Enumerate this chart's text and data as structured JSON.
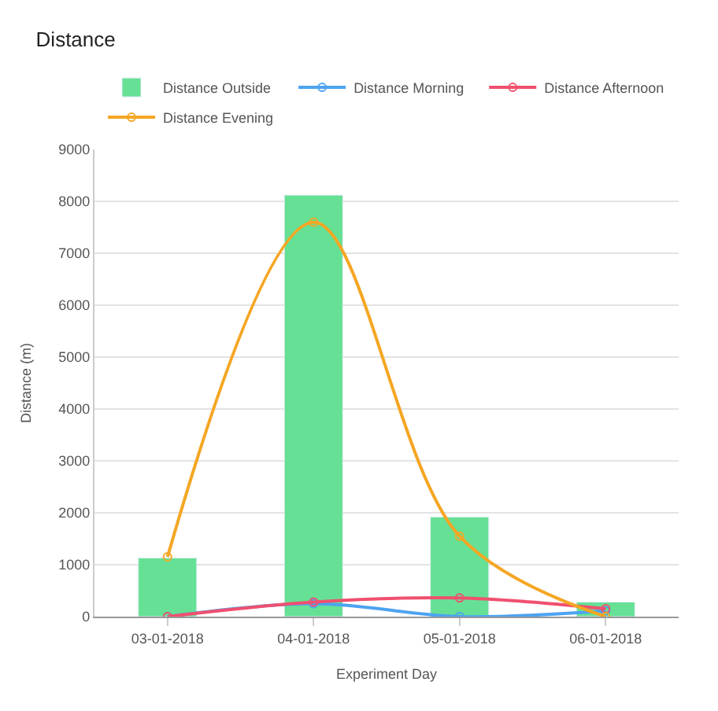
{
  "chart_data": {
    "type": "bar",
    "title": "Distance",
    "xlabel": "Experiment Day",
    "ylabel": "Distance (m)",
    "categories": [
      "03-01-2018",
      "04-01-2018",
      "05-01-2018",
      "06-01-2018"
    ],
    "series": [
      {
        "name": "Distance Outside",
        "color": "#66e095",
        "values": [
          1130,
          8120,
          1920,
          280
        ]
      },
      {
        "name": "Distance Morning",
        "type": "line",
        "color": "#4da3f0",
        "values": [
          0,
          250,
          0,
          110
        ]
      },
      {
        "name": "Distance Afternoon",
        "type": "line",
        "color": "#f0506e",
        "values": [
          0,
          280,
          360,
          150
        ]
      },
      {
        "name": "Distance Evening",
        "type": "line",
        "color": "#f5a623",
        "values": [
          1150,
          7600,
          1550,
          0
        ]
      }
    ],
    "ylim": [
      0,
      9000
    ],
    "yticks": [
      0,
      1000,
      2000,
      3000,
      4000,
      5000,
      6000,
      7000,
      8000,
      9000
    ],
    "grid": "y",
    "legend": "top",
    "marker": "circle",
    "line_style": "solid"
  }
}
